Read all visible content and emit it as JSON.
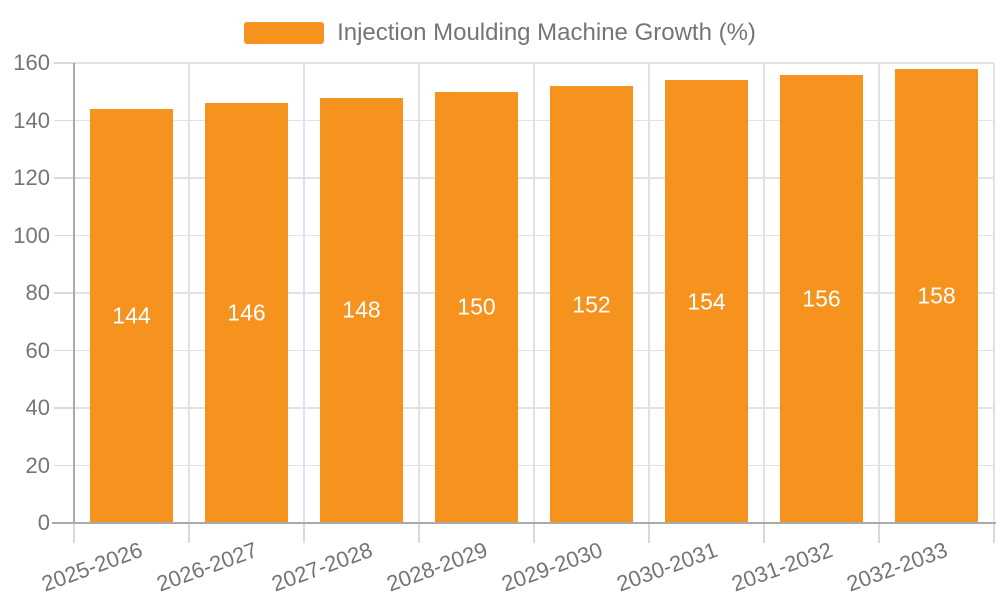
{
  "chart_data": {
    "type": "bar",
    "title": "",
    "legend": {
      "label": "Injection Moulding Machine Growth (%)",
      "position": "top"
    },
    "categories": [
      "2025-2026",
      "2026-2027",
      "2027-2028",
      "2028-2029",
      "2029-2030",
      "2030-2031",
      "2031-2032",
      "2032-2033"
    ],
    "series": [
      {
        "name": "Injection Moulding Machine Growth (%)",
        "values": [
          144,
          146,
          148,
          150,
          152,
          154,
          156,
          158
        ]
      }
    ],
    "value_labels": [
      "144",
      "146",
      "148",
      "150",
      "152",
      "154",
      "156",
      "158"
    ],
    "xlabel": "",
    "ylabel": "",
    "ylim": [
      0,
      160
    ],
    "ytick_step": 20,
    "yticks": [
      "0",
      "20",
      "40",
      "60",
      "80",
      "100",
      "120",
      "140",
      "160"
    ],
    "grid": true,
    "x_label_rotation_deg": -20,
    "colors": {
      "bar": "#f6921e",
      "value_label": "#ffffff",
      "grid": "#e2e2e2",
      "axis": "#aaaaaa",
      "tick": "#d9d9d9",
      "text": "#757575"
    }
  }
}
